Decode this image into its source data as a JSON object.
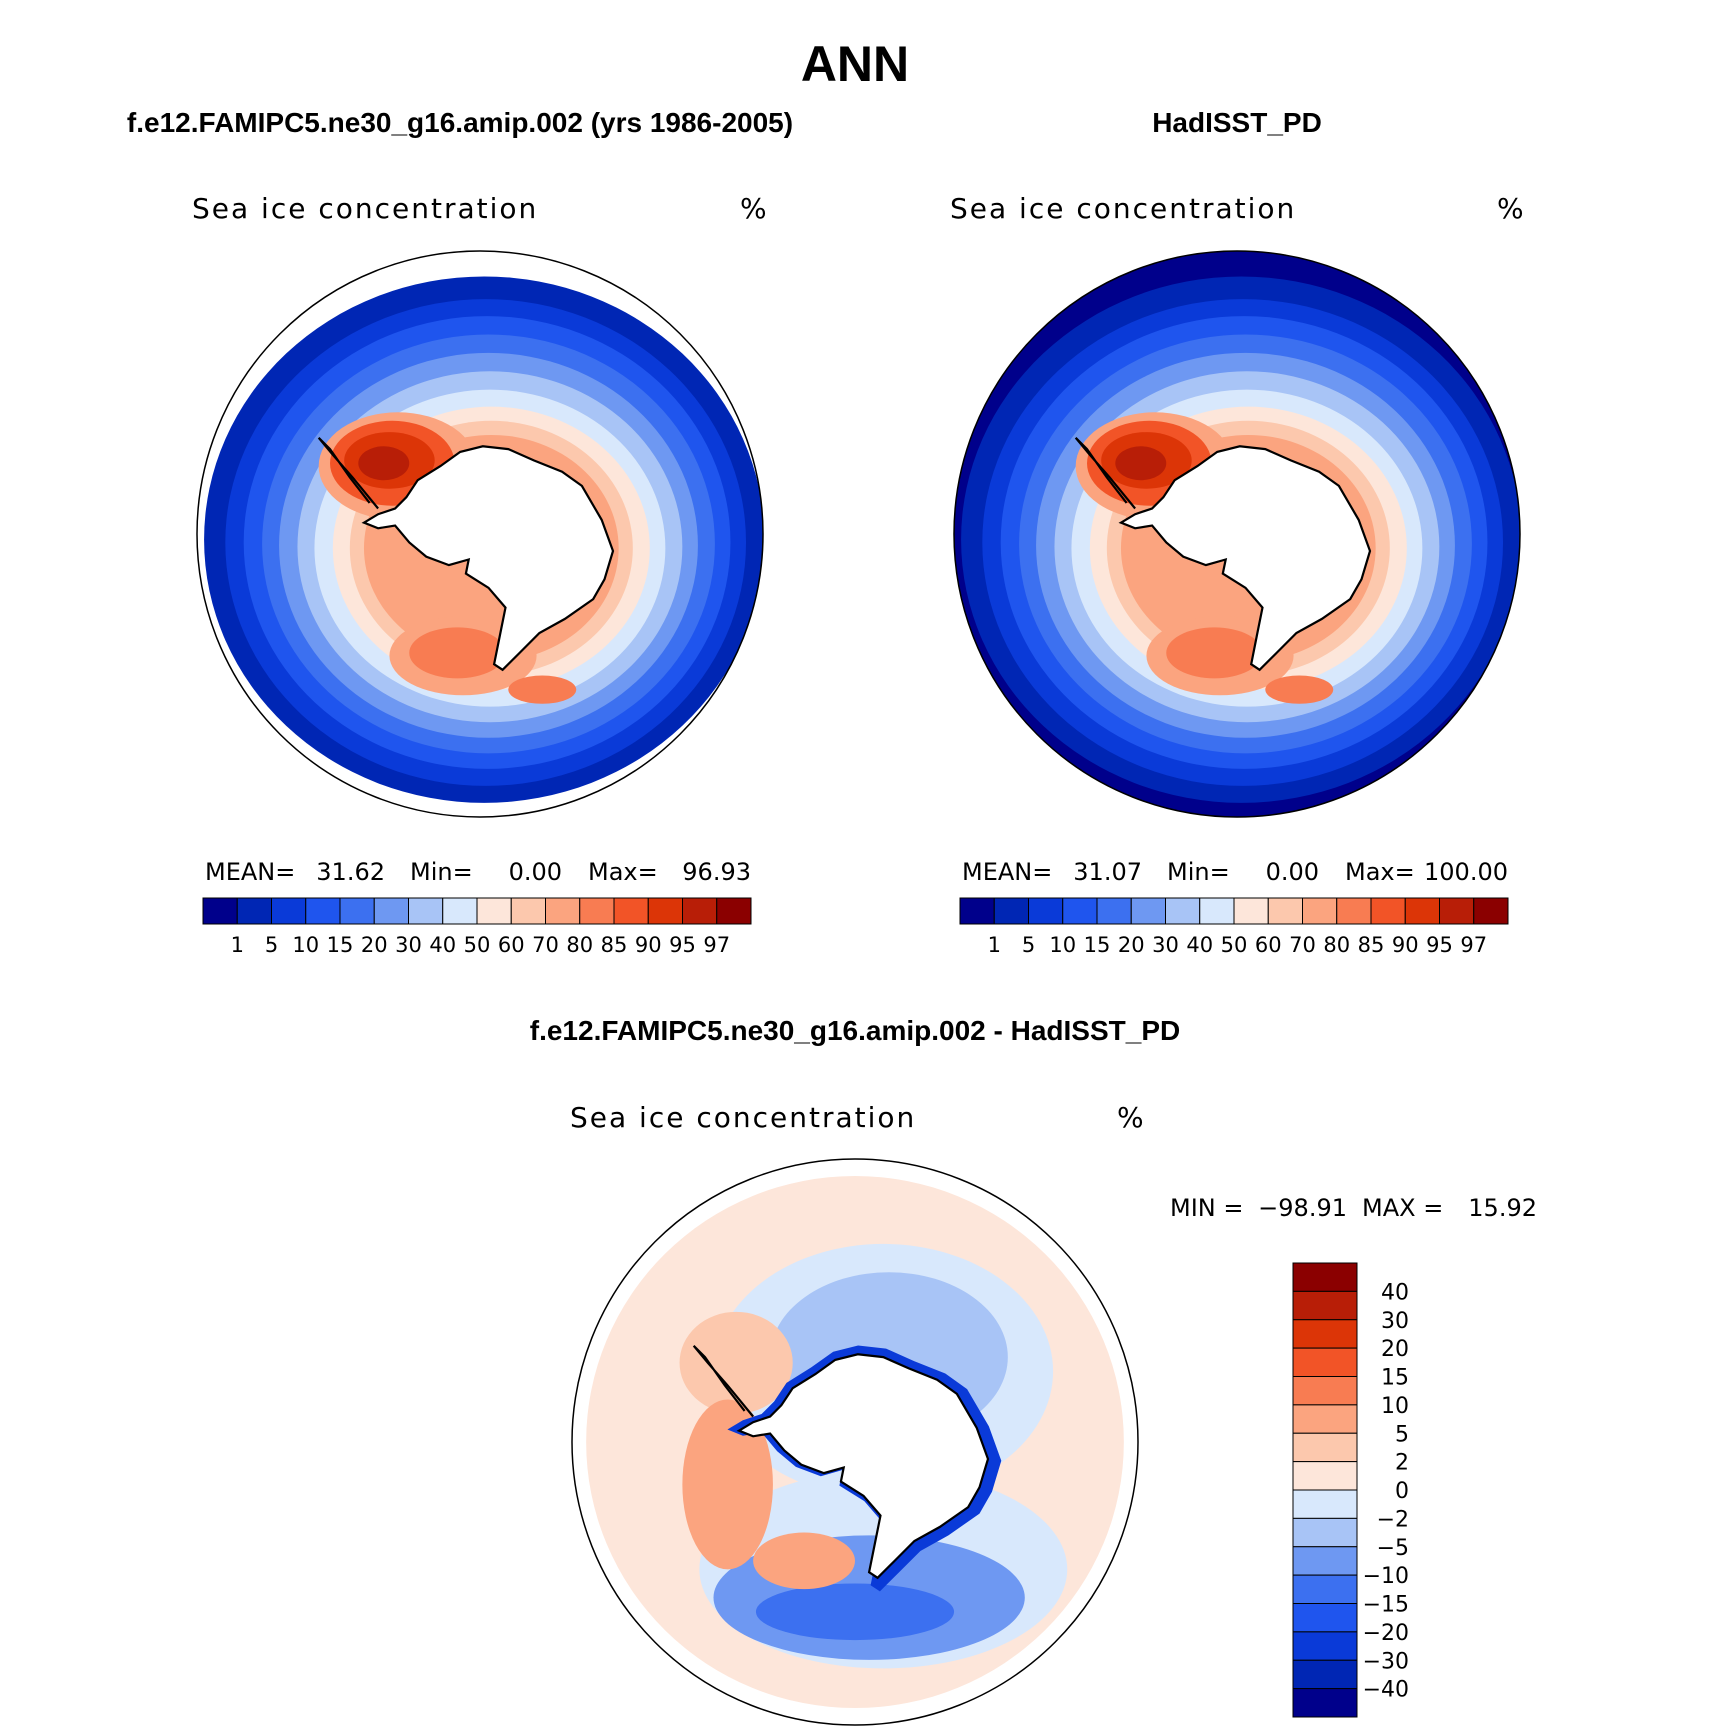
{
  "page": {
    "title": "ANN",
    "diff_title": "f.e12.FAMIPC5.ne30_g16.amip.002 - HadISST_PD"
  },
  "colors": {
    "land": "#ffffff",
    "coast": "#000000",
    "pos_scale": [
      "#00008b",
      "#0026b4",
      "#0a3ad8",
      "#1f55ee",
      "#3c70f0",
      "#6e98f2",
      "#a8c4f6",
      "#d8e8fc",
      "#fde6da",
      "#fcc8ad",
      "#fba47f",
      "#f87c52",
      "#f25427",
      "#dc3507",
      "#b81e07",
      "#8b0000"
    ]
  },
  "chart_data": [
    {
      "type": "heatmap",
      "panel": "model",
      "heading": "f.e12.FAMIPC5.ne30_g16.amip.002 (yrs 1986-2005)",
      "variable": "Sea ice concentration",
      "units": "%",
      "stats": [
        {
          "label": "MEAN=",
          "value": "31.62"
        },
        {
          "label": "Min=",
          "value": "0.00"
        },
        {
          "label": "Max=",
          "value": "96.93"
        }
      ],
      "levels": [
        "1",
        "5",
        "10",
        "15",
        "20",
        "30",
        "40",
        "50",
        "60",
        "70",
        "80",
        "85",
        "90",
        "95",
        "97"
      ],
      "open_ocean_filled": false
    },
    {
      "type": "heatmap",
      "panel": "obs",
      "heading": "HadISST_PD",
      "variable": "Sea ice concentration",
      "units": "%",
      "stats": [
        {
          "label": "MEAN=",
          "value": "31.07"
        },
        {
          "label": "Min=",
          "value": "0.00"
        },
        {
          "label": "Max=",
          "value": "100.00"
        }
      ],
      "levels": [
        "1",
        "5",
        "10",
        "15",
        "20",
        "30",
        "40",
        "50",
        "60",
        "70",
        "80",
        "85",
        "90",
        "95",
        "97"
      ],
      "open_ocean_filled": true
    },
    {
      "type": "heatmap",
      "panel": "difference",
      "variable": "Sea ice concentration",
      "units": "%",
      "min_label": "MIN =",
      "min_value": "−98.91",
      "max_label": "MAX =",
      "max_value": "15.92",
      "levels": [
        "40",
        "30",
        "20",
        "15",
        "10",
        "5",
        "2",
        "0",
        "−2",
        "−5",
        "−10",
        "−15",
        "−20",
        "−30",
        "−40"
      ],
      "colors": [
        "#8b0000",
        "#b81e07",
        "#dc3507",
        "#f25427",
        "#f87c52",
        "#fba47f",
        "#fcc8ad",
        "#fde6da",
        "#d8e8fc",
        "#a8c4f6",
        "#6e98f2",
        "#3c70f0",
        "#1f55ee",
        "#0a3ad8",
        "#0026b4",
        "#00008b"
      ]
    }
  ]
}
